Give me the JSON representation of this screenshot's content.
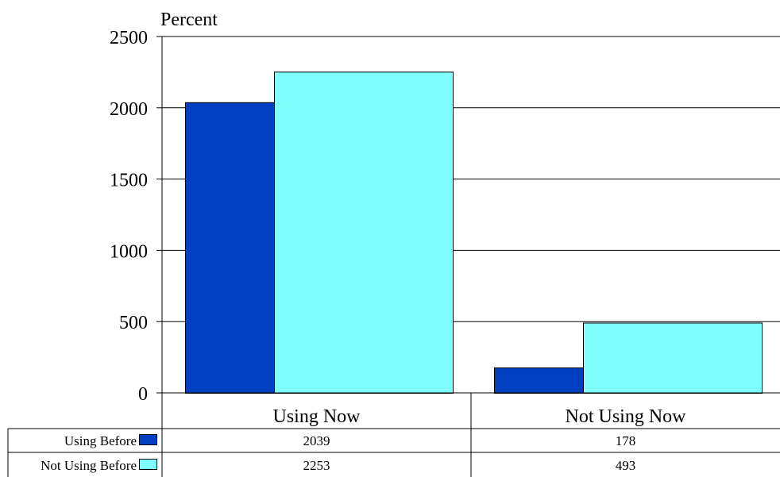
{
  "chart_data": {
    "type": "bar",
    "ylabel": "Percent",
    "ylim": [
      0,
      2500
    ],
    "yticks": [
      0,
      500,
      1000,
      1500,
      2000,
      2500
    ],
    "categories": [
      "Using Now",
      "Not Using Now"
    ],
    "series": [
      {
        "name": "Using Before",
        "color": "#0040C0",
        "values": [
          2039,
          178
        ]
      },
      {
        "name": "Not Using Before",
        "color": "#80FFFF",
        "values": [
          2253,
          493
        ]
      }
    ],
    "grid": true,
    "legend": "data-table-left"
  }
}
